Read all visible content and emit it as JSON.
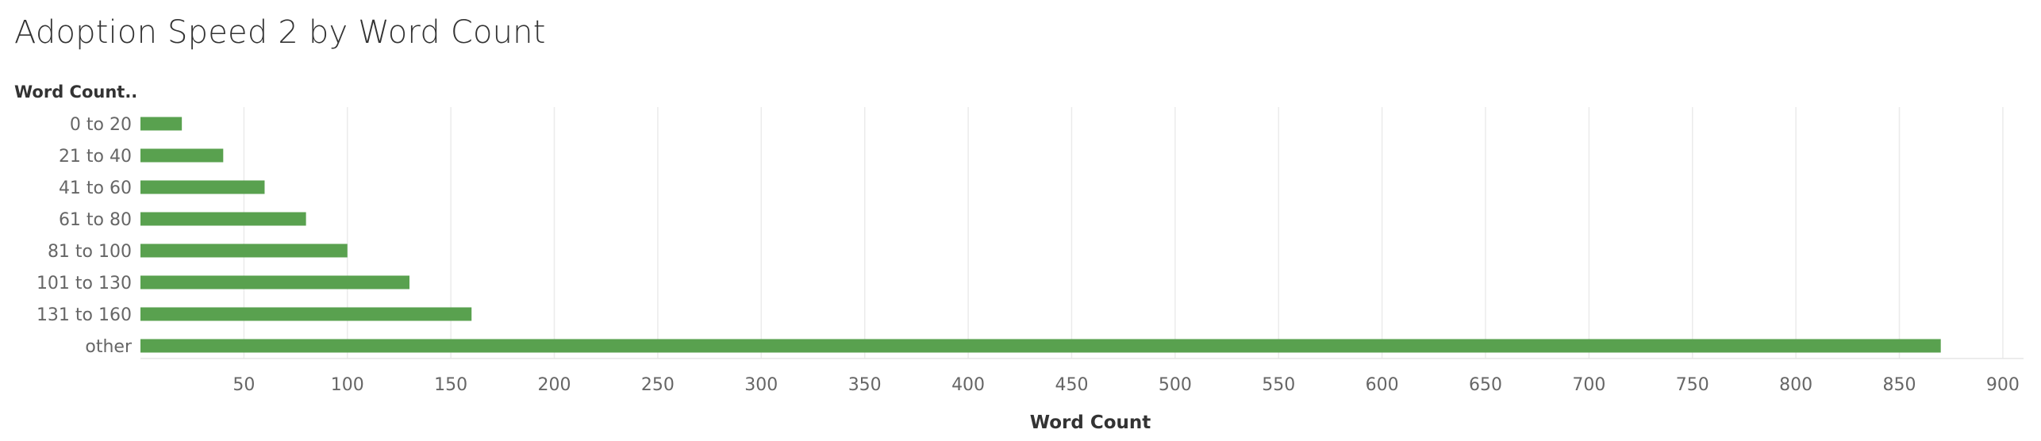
{
  "chart_data": {
    "type": "bar",
    "orientation": "horizontal",
    "title": "Adoption Speed 2 by Word Count",
    "category_header": "Word Count..",
    "categories": [
      "0 to 20",
      "21 to 40",
      "41 to 60",
      "61 to 80",
      "81 to 100",
      "101 to 130",
      "131 to 160",
      "other"
    ],
    "values": [
      20,
      40,
      60,
      80,
      100,
      130,
      160,
      870
    ],
    "xlabel": "Word Count",
    "xlim": [
      0,
      910
    ],
    "xticks": [
      50,
      100,
      150,
      200,
      250,
      300,
      350,
      400,
      450,
      500,
      550,
      600,
      650,
      700,
      750,
      800,
      850,
      900
    ],
    "grid": true,
    "bar_color": "#59a14f"
  }
}
